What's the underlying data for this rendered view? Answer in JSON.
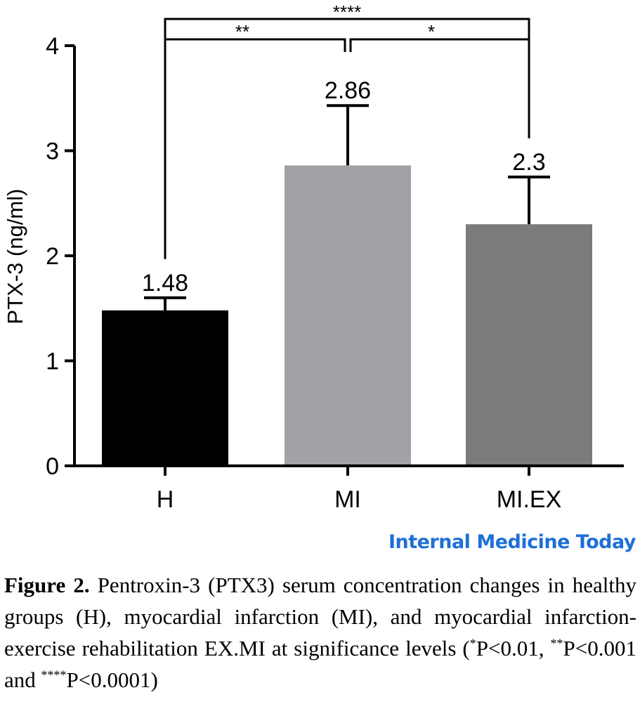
{
  "chart_data": {
    "type": "bar",
    "categories": [
      "H",
      "MI",
      "MI.EX"
    ],
    "values": [
      1.48,
      2.86,
      2.3
    ],
    "errors": [
      0.12,
      0.57,
      0.45
    ],
    "value_labels": [
      "1.48",
      "2.86",
      "2.3"
    ],
    "bar_colors": [
      "#000000",
      "#a2a2a6",
      "#7b7b7b"
    ],
    "ylabel": "PTX-3 (ng/ml)",
    "xlabel": "",
    "ylim": [
      0,
      4
    ],
    "yticks": [
      "0",
      "1",
      "2",
      "3",
      "4"
    ],
    "grid": false,
    "significance": [
      {
        "from": "H",
        "to": "MI",
        "label": "**"
      },
      {
        "from": "MI",
        "to": "MI.EX",
        "label": "*"
      },
      {
        "from": "H",
        "to": "MI.EX",
        "label": "****"
      }
    ]
  },
  "watermark": "Internal Medicine Today",
  "caption": {
    "label": "Figure 2.",
    "text_before": " Pentroxin-3 (PTX3) serum concentration changes in healthy groups (H), myocardial infarction (MI), and myocardial infarction-exercise rehabilitation EX.MI at significance levels (",
    "sup1": "*",
    "part1": "P<0.01, ",
    "sup2": "**",
    "part2": "P<0.001 and ",
    "sup3": "****",
    "part3": "P<0.0001)"
  }
}
